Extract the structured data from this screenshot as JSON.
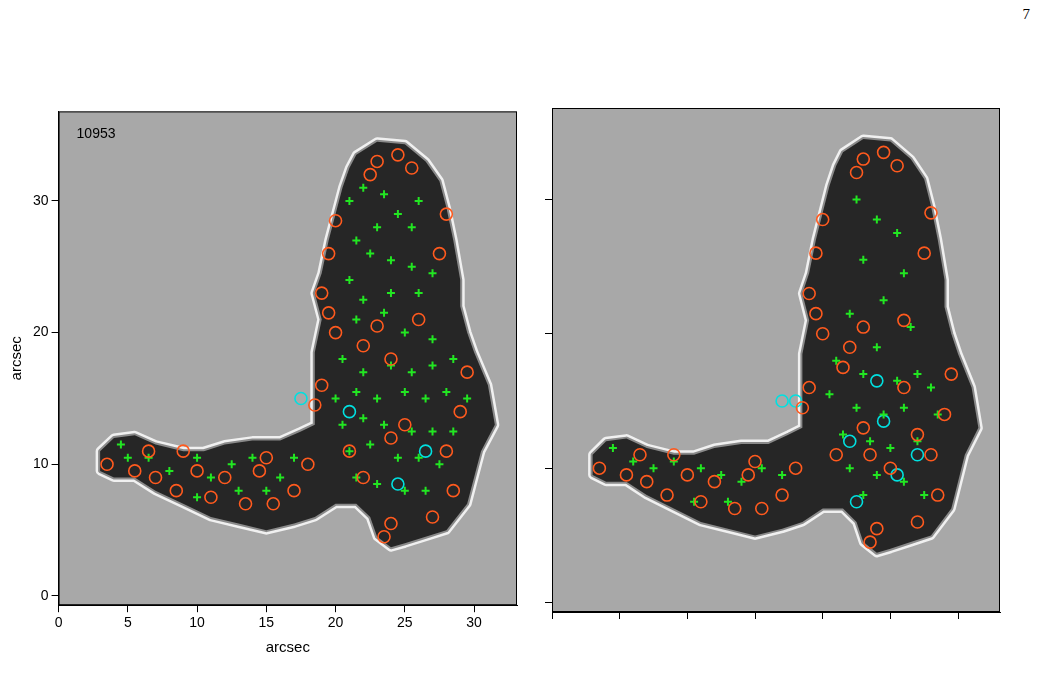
{
  "page_number": 7,
  "chart_data": [
    {
      "type": "scatter",
      "annotation": "10953",
      "xlabel": "arcsec",
      "ylabel": "arcsec",
      "xlim": [
        0,
        33.1
      ],
      "ylim": [
        -0.7,
        36.8
      ],
      "xticks": [
        0,
        5,
        10,
        15,
        20,
        25,
        30
      ],
      "yticks": [
        0,
        10,
        20,
        30
      ],
      "grid": false,
      "series": [
        {
          "type": "area",
          "color": "#262626",
          "x": [
            21.5,
            23,
            25,
            26.5,
            27.5,
            28,
            28.5,
            29,
            29,
            29.5,
            30,
            31,
            31.5,
            30.5,
            30,
            29.5,
            28,
            26.5,
            25,
            24,
            23,
            22.5,
            21.5,
            20,
            18.5,
            17,
            15,
            13,
            11,
            9,
            7,
            5.5,
            4,
            3,
            3,
            4,
            5.5,
            7,
            9,
            10.5,
            12,
            14,
            16,
            17.5,
            18.5,
            18.5,
            18.5,
            19,
            18.5,
            19,
            19.5,
            20,
            20.5,
            21
          ],
          "y": [
            33.5,
            34.5,
            34.3,
            33,
            31.5,
            29.5,
            27,
            24,
            22,
            20,
            18.5,
            16,
            13,
            11,
            9,
            7,
            5,
            4.5,
            4,
            3.7,
            4.5,
            6,
            7,
            7,
            6,
            5.5,
            5,
            5.5,
            6,
            7,
            8,
            9,
            9,
            9.5,
            11,
            12,
            12.2,
            11.5,
            11,
            11,
            11.5,
            11.8,
            11.8,
            12.5,
            13,
            16,
            18.5,
            21,
            23,
            24.5,
            27,
            29,
            31,
            32.5
          ]
        },
        {
          "type": "scatter",
          "marker": "circle",
          "color": "#ff5a1e",
          "x": [
            23,
            24.5,
            25.5,
            22.5,
            20,
            19.5,
            19,
            19.5,
            20,
            19,
            18.5,
            22,
            23,
            24,
            26,
            25,
            24,
            28,
            28.5,
            27,
            24,
            23.5,
            22,
            21,
            29,
            29.5,
            27.5,
            28,
            3.5,
            5.5,
            7,
            8.5,
            9,
            11,
            12,
            13.5,
            14.5,
            15.5,
            17,
            15,
            18,
            6.5,
            10
          ],
          "y": [
            33,
            33.5,
            32.5,
            32,
            28.5,
            26,
            23,
            21.5,
            20,
            16,
            14.5,
            19,
            20.5,
            18,
            21,
            13,
            12,
            11,
            8,
            6,
            5.5,
            4.5,
            9,
            11,
            14,
            17,
            26,
            29,
            10,
            9.5,
            9,
            8,
            11,
            7.5,
            9,
            7,
            9.5,
            7,
            8,
            10.5,
            10,
            11,
            9.5
          ]
        },
        {
          "type": "scatter",
          "marker": "cross",
          "color": "#22e622",
          "x": [
            21,
            22,
            23.5,
            24.5,
            25.5,
            26,
            23,
            21.5,
            22.5,
            24,
            25.5,
            27,
            21,
            22,
            24,
            26,
            21.5,
            23.5,
            25,
            27,
            20.5,
            22,
            24,
            25.5,
            27,
            28.5,
            20,
            21.5,
            23,
            25,
            26.5,
            28,
            29.5,
            20.5,
            22,
            23.5,
            25.5,
            27,
            28.5,
            21,
            22.5,
            24.5,
            26,
            27.5,
            21.5,
            23,
            25,
            26.5,
            4.5,
            5,
            6.5,
            8,
            10,
            11,
            12.5,
            13,
            14,
            16,
            17,
            10,
            15
          ],
          "y": [
            30,
            31,
            30.5,
            29,
            28,
            30,
            28,
            27,
            26,
            25.5,
            25,
            24.5,
            24,
            22.5,
            23,
            23,
            21,
            21.5,
            20,
            19.5,
            18,
            17,
            17.5,
            17,
            17.5,
            18,
            15,
            15.5,
            15,
            15.5,
            15,
            15.5,
            15,
            13,
            13.5,
            13,
            12.5,
            12.5,
            12.5,
            11,
            11.5,
            10.5,
            10.5,
            10,
            9,
            8.5,
            8,
            8,
            11.5,
            10.5,
            10.5,
            9.5,
            10.5,
            9,
            10,
            8,
            10.5,
            9,
            10.5,
            7.5,
            8
          ]
        },
        {
          "type": "scatter",
          "marker": "circle",
          "color": "#00e0e0",
          "x": [
            17.5,
            24.5,
            26.5,
            21
          ],
          "y": [
            15,
            8.5,
            11,
            14
          ]
        }
      ]
    },
    {
      "type": "scatter",
      "xlim": [
        0,
        33.1
      ],
      "ylim": [
        -0.7,
        36.8
      ],
      "xticks": [
        0,
        5,
        10,
        15,
        20,
        25,
        30
      ],
      "yticks": [
        0,
        10,
        20,
        30
      ],
      "grid": false,
      "tick_labels": false,
      "series": [
        {
          "type": "area",
          "color": "#262626",
          "x": [
            21.5,
            23,
            25,
            26.5,
            27.5,
            28,
            28.5,
            29,
            29,
            29.5,
            30,
            31,
            31.5,
            30.5,
            30,
            29.5,
            28,
            26.5,
            25,
            24,
            23,
            22.5,
            21.5,
            20,
            18.5,
            17,
            15,
            13,
            11,
            9,
            7,
            5.5,
            4,
            3,
            3,
            4,
            5.5,
            7,
            9,
            10.5,
            12,
            14,
            16,
            17.5,
            18.5,
            18.5,
            18.5,
            19,
            18.5,
            19,
            19.5,
            20,
            20.5,
            21
          ],
          "y": [
            33.5,
            34.5,
            34.3,
            33,
            31.5,
            29.5,
            27,
            24,
            22,
            20,
            18.5,
            16,
            13,
            11,
            9,
            7,
            5,
            4.5,
            4,
            3.7,
            4.5,
            6,
            7,
            7,
            6,
            5.5,
            5,
            5.5,
            6,
            7,
            8,
            9,
            9,
            9.5,
            11,
            12,
            12.2,
            11.5,
            11,
            11,
            11.5,
            11.8,
            11.8,
            12.5,
            13,
            16,
            18.5,
            21,
            23,
            24.5,
            27,
            29,
            31,
            32.5
          ]
        },
        {
          "type": "scatter",
          "marker": "circle",
          "color": "#ff5a1e",
          "x": [
            23,
            24.5,
            25.5,
            22.5,
            20,
            19.5,
            19,
            19.5,
            20,
            19,
            18.5,
            22,
            23,
            26,
            28,
            28.5,
            27,
            24,
            23.5,
            21,
            29,
            29.5,
            27.5,
            28,
            3.5,
            5.5,
            7,
            8.5,
            9,
            11,
            12,
            13.5,
            14.5,
            15.5,
            17,
            15,
            18,
            6.5,
            10,
            23,
            25,
            27,
            21.5,
            26,
            23.5
          ],
          "y": [
            33,
            33.5,
            32.5,
            32,
            28.5,
            26,
            23,
            21.5,
            20,
            16,
            14.5,
            19,
            20.5,
            21,
            11,
            8,
            6,
            5.5,
            4.5,
            11,
            14,
            17,
            26,
            29,
            10,
            9.5,
            9,
            8,
            11,
            7.5,
            9,
            7,
            9.5,
            7,
            8,
            10.5,
            10,
            11,
            9.5,
            13,
            10,
            12.5,
            17.5,
            16,
            11
          ]
        },
        {
          "type": "scatter",
          "marker": "cross",
          "color": "#22e622",
          "x": [
            22.5,
            24,
            25.5,
            23,
            26,
            24.5,
            22,
            26.5,
            24,
            21,
            23,
            25.5,
            27,
            28,
            20.5,
            22.5,
            24.5,
            26,
            28.5,
            21.5,
            23.5,
            25,
            27,
            22,
            24,
            26,
            23,
            27.5,
            4.5,
            6,
            7.5,
            9,
            11,
            12.5,
            14,
            15.5,
            17,
            10.5,
            13
          ],
          "y": [
            30,
            28.5,
            27.5,
            25.5,
            24.5,
            22.5,
            21.5,
            20.5,
            19,
            18,
            17,
            16.5,
            17,
            16,
            15.5,
            14.5,
            14,
            14.5,
            14,
            12.5,
            12,
            11.5,
            12,
            10,
            9.5,
            9,
            8,
            8,
            11.5,
            10.5,
            10,
            10.5,
            10,
            9.5,
            9,
            10,
            9.5,
            7.5,
            7.5
          ]
        },
        {
          "type": "scatter",
          "marker": "circle",
          "color": "#00e0e0",
          "x": [
            17,
            18,
            22,
            24.5,
            25.5,
            22.5,
            27,
            24
          ],
          "y": [
            15,
            15,
            12,
            13.5,
            9.5,
            7.5,
            11,
            16.5
          ]
        }
      ]
    }
  ]
}
